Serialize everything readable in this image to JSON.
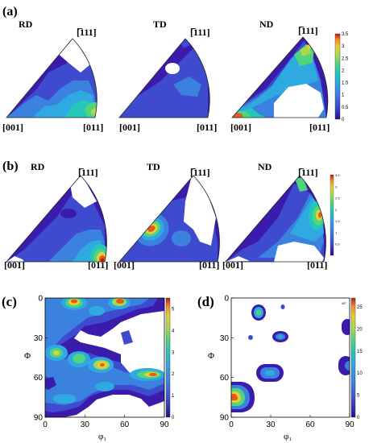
{
  "colors": {
    "palette": [
      "#3a1bab",
      "#3e4bcf",
      "#3b82df",
      "#2eaae0",
      "#25c7b8",
      "#52d47f",
      "#a8d84e",
      "#e3d036",
      "#f5b23b",
      "#e35a1e",
      "#b51d14"
    ]
  },
  "panel_a": {
    "label": "(a)",
    "directions": [
      "RD",
      "TD",
      "ND"
    ],
    "miller_top": "[̅111]",
    "miller_left": "[001]",
    "miller_right": "[011]",
    "colorbar_ticks": [
      "0",
      "0.5",
      "1",
      "1.5",
      "2",
      "2.5",
      "3",
      "3.5"
    ],
    "colorbar_range": [
      0,
      3.5
    ]
  },
  "panel_b": {
    "label": "(b)",
    "directions": [
      "RD",
      "TD",
      "ND"
    ],
    "miller_top": "[̅111]",
    "miller_left": "[001]",
    "miller_right": "[011]",
    "colorbar_ticks": [
      "0.5",
      "1",
      "1.5",
      "2",
      "2.5",
      "3",
      "3.5"
    ],
    "colorbar_range": [
      0,
      3.5
    ]
  },
  "panel_c": {
    "label": "(c)",
    "xlabel": "φ₁",
    "ylabel": "Φ",
    "xticks": [
      "0",
      "30",
      "60",
      "90"
    ],
    "yticks": [
      "0",
      "30",
      "60",
      "90"
    ],
    "colorbar_ticks": [
      "0",
      "1",
      "2",
      "3",
      "4",
      "5"
    ],
    "colorbar_range": [
      0,
      5.5
    ]
  },
  "panel_d": {
    "label": "(d)",
    "xlabel": "φ₁",
    "ylabel": "Φ",
    "xticks": [
      "0",
      "30",
      "60",
      "90"
    ],
    "yticks": [
      "0",
      "30",
      "60",
      "90"
    ],
    "corner_text": "45°",
    "colorbar_ticks": [
      "0",
      "5",
      "10",
      "15",
      "20",
      "25"
    ],
    "colorbar_range": [
      0,
      27
    ]
  }
}
